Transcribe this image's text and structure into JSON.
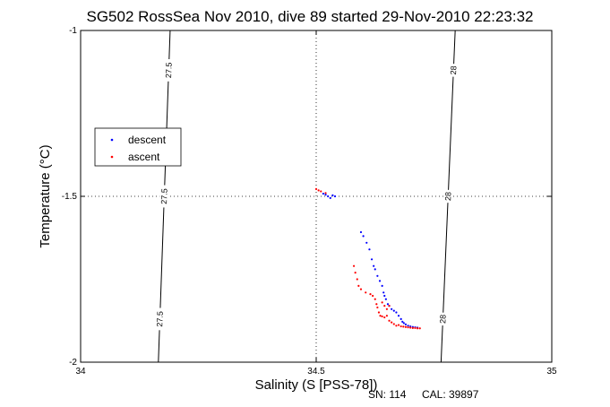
{
  "chart_data": {
    "type": "scatter",
    "title": "SG502 RossSea Nov 2010, dive 89 started 29-Nov-2010 22:23:32",
    "xlabel": "Salinity (S [PSS-78])",
    "ylabel": "Temperature (°C)",
    "xlim": [
      34,
      35
    ],
    "ylim": [
      -2,
      -1
    ],
    "x_ticks": [
      "34",
      "34.5",
      "35"
    ],
    "y_ticks": [
      "-1",
      "-1.5",
      "-2"
    ],
    "grid": "dotted lines at S=34.5 and T=-1.5",
    "legend": {
      "placement": "left",
      "entries": [
        "descent",
        "ascent"
      ]
    },
    "colors": {
      "descent": "#0000ff",
      "ascent": "#ff0000",
      "isopycnal": "#000000"
    },
    "isopycnals": [
      {
        "label": "27.5",
        "points": [
          [
            34.165,
            -2
          ],
          [
            34.19,
            -1
          ]
        ]
      },
      {
        "label": "28",
        "points": [
          [
            34.765,
            -2
          ],
          [
            34.795,
            -1
          ]
        ]
      }
    ],
    "series": [
      {
        "name": "descent",
        "points": [
          [
            34.515,
            -1.492
          ],
          [
            34.52,
            -1.495
          ],
          [
            34.525,
            -1.5
          ],
          [
            34.53,
            -1.505
          ],
          [
            34.535,
            -1.497
          ],
          [
            34.54,
            -1.5
          ],
          [
            34.595,
            -1.608
          ],
          [
            34.6,
            -1.62
          ],
          [
            34.607,
            -1.64
          ],
          [
            34.613,
            -1.66
          ],
          [
            34.618,
            -1.69
          ],
          [
            34.622,
            -1.71
          ],
          [
            34.625,
            -1.72
          ],
          [
            34.63,
            -1.74
          ],
          [
            34.635,
            -1.755
          ],
          [
            34.64,
            -1.77
          ],
          [
            34.643,
            -1.79
          ],
          [
            34.645,
            -1.8
          ],
          [
            34.648,
            -1.81
          ],
          [
            34.652,
            -1.825
          ],
          [
            34.655,
            -1.83
          ],
          [
            34.66,
            -1.84
          ],
          [
            34.665,
            -1.845
          ],
          [
            34.67,
            -1.85
          ],
          [
            34.675,
            -1.86
          ],
          [
            34.68,
            -1.87
          ],
          [
            34.683,
            -1.878
          ],
          [
            34.686,
            -1.882
          ],
          [
            34.69,
            -1.886
          ],
          [
            34.695,
            -1.89
          ],
          [
            34.7,
            -1.892
          ],
          [
            34.705,
            -1.894
          ],
          [
            34.71,
            -1.895
          ],
          [
            34.715,
            -1.896
          ]
        ]
      },
      {
        "name": "ascent",
        "points": [
          [
            34.5,
            -1.478
          ],
          [
            34.505,
            -1.482
          ],
          [
            34.51,
            -1.485
          ],
          [
            34.52,
            -1.49
          ],
          [
            34.58,
            -1.71
          ],
          [
            34.583,
            -1.73
          ],
          [
            34.587,
            -1.75
          ],
          [
            34.59,
            -1.77
          ],
          [
            34.595,
            -1.78
          ],
          [
            34.605,
            -1.79
          ],
          [
            34.615,
            -1.795
          ],
          [
            34.62,
            -1.8
          ],
          [
            34.625,
            -1.81
          ],
          [
            34.628,
            -1.825
          ],
          [
            34.63,
            -1.835
          ],
          [
            34.633,
            -1.85
          ],
          [
            34.636,
            -1.86
          ],
          [
            34.64,
            -1.862
          ],
          [
            34.645,
            -1.865
          ],
          [
            34.65,
            -1.86
          ],
          [
            34.655,
            -1.875
          ],
          [
            34.66,
            -1.88
          ],
          [
            34.665,
            -1.885
          ],
          [
            34.67,
            -1.89
          ],
          [
            34.675,
            -1.888
          ],
          [
            34.68,
            -1.892
          ],
          [
            34.685,
            -1.893
          ],
          [
            34.69,
            -1.894
          ],
          [
            34.695,
            -1.895
          ],
          [
            34.7,
            -1.896
          ],
          [
            34.705,
            -1.897
          ],
          [
            34.71,
            -1.897
          ],
          [
            34.715,
            -1.898
          ],
          [
            34.72,
            -1.898
          ],
          [
            34.64,
            -1.82
          ],
          [
            34.645,
            -1.83
          ],
          [
            34.65,
            -1.84
          ],
          [
            34.655,
            -1.83
          ]
        ]
      }
    ]
  },
  "footer": {
    "sn": "SN: 114",
    "cal": "CAL: 39897"
  }
}
